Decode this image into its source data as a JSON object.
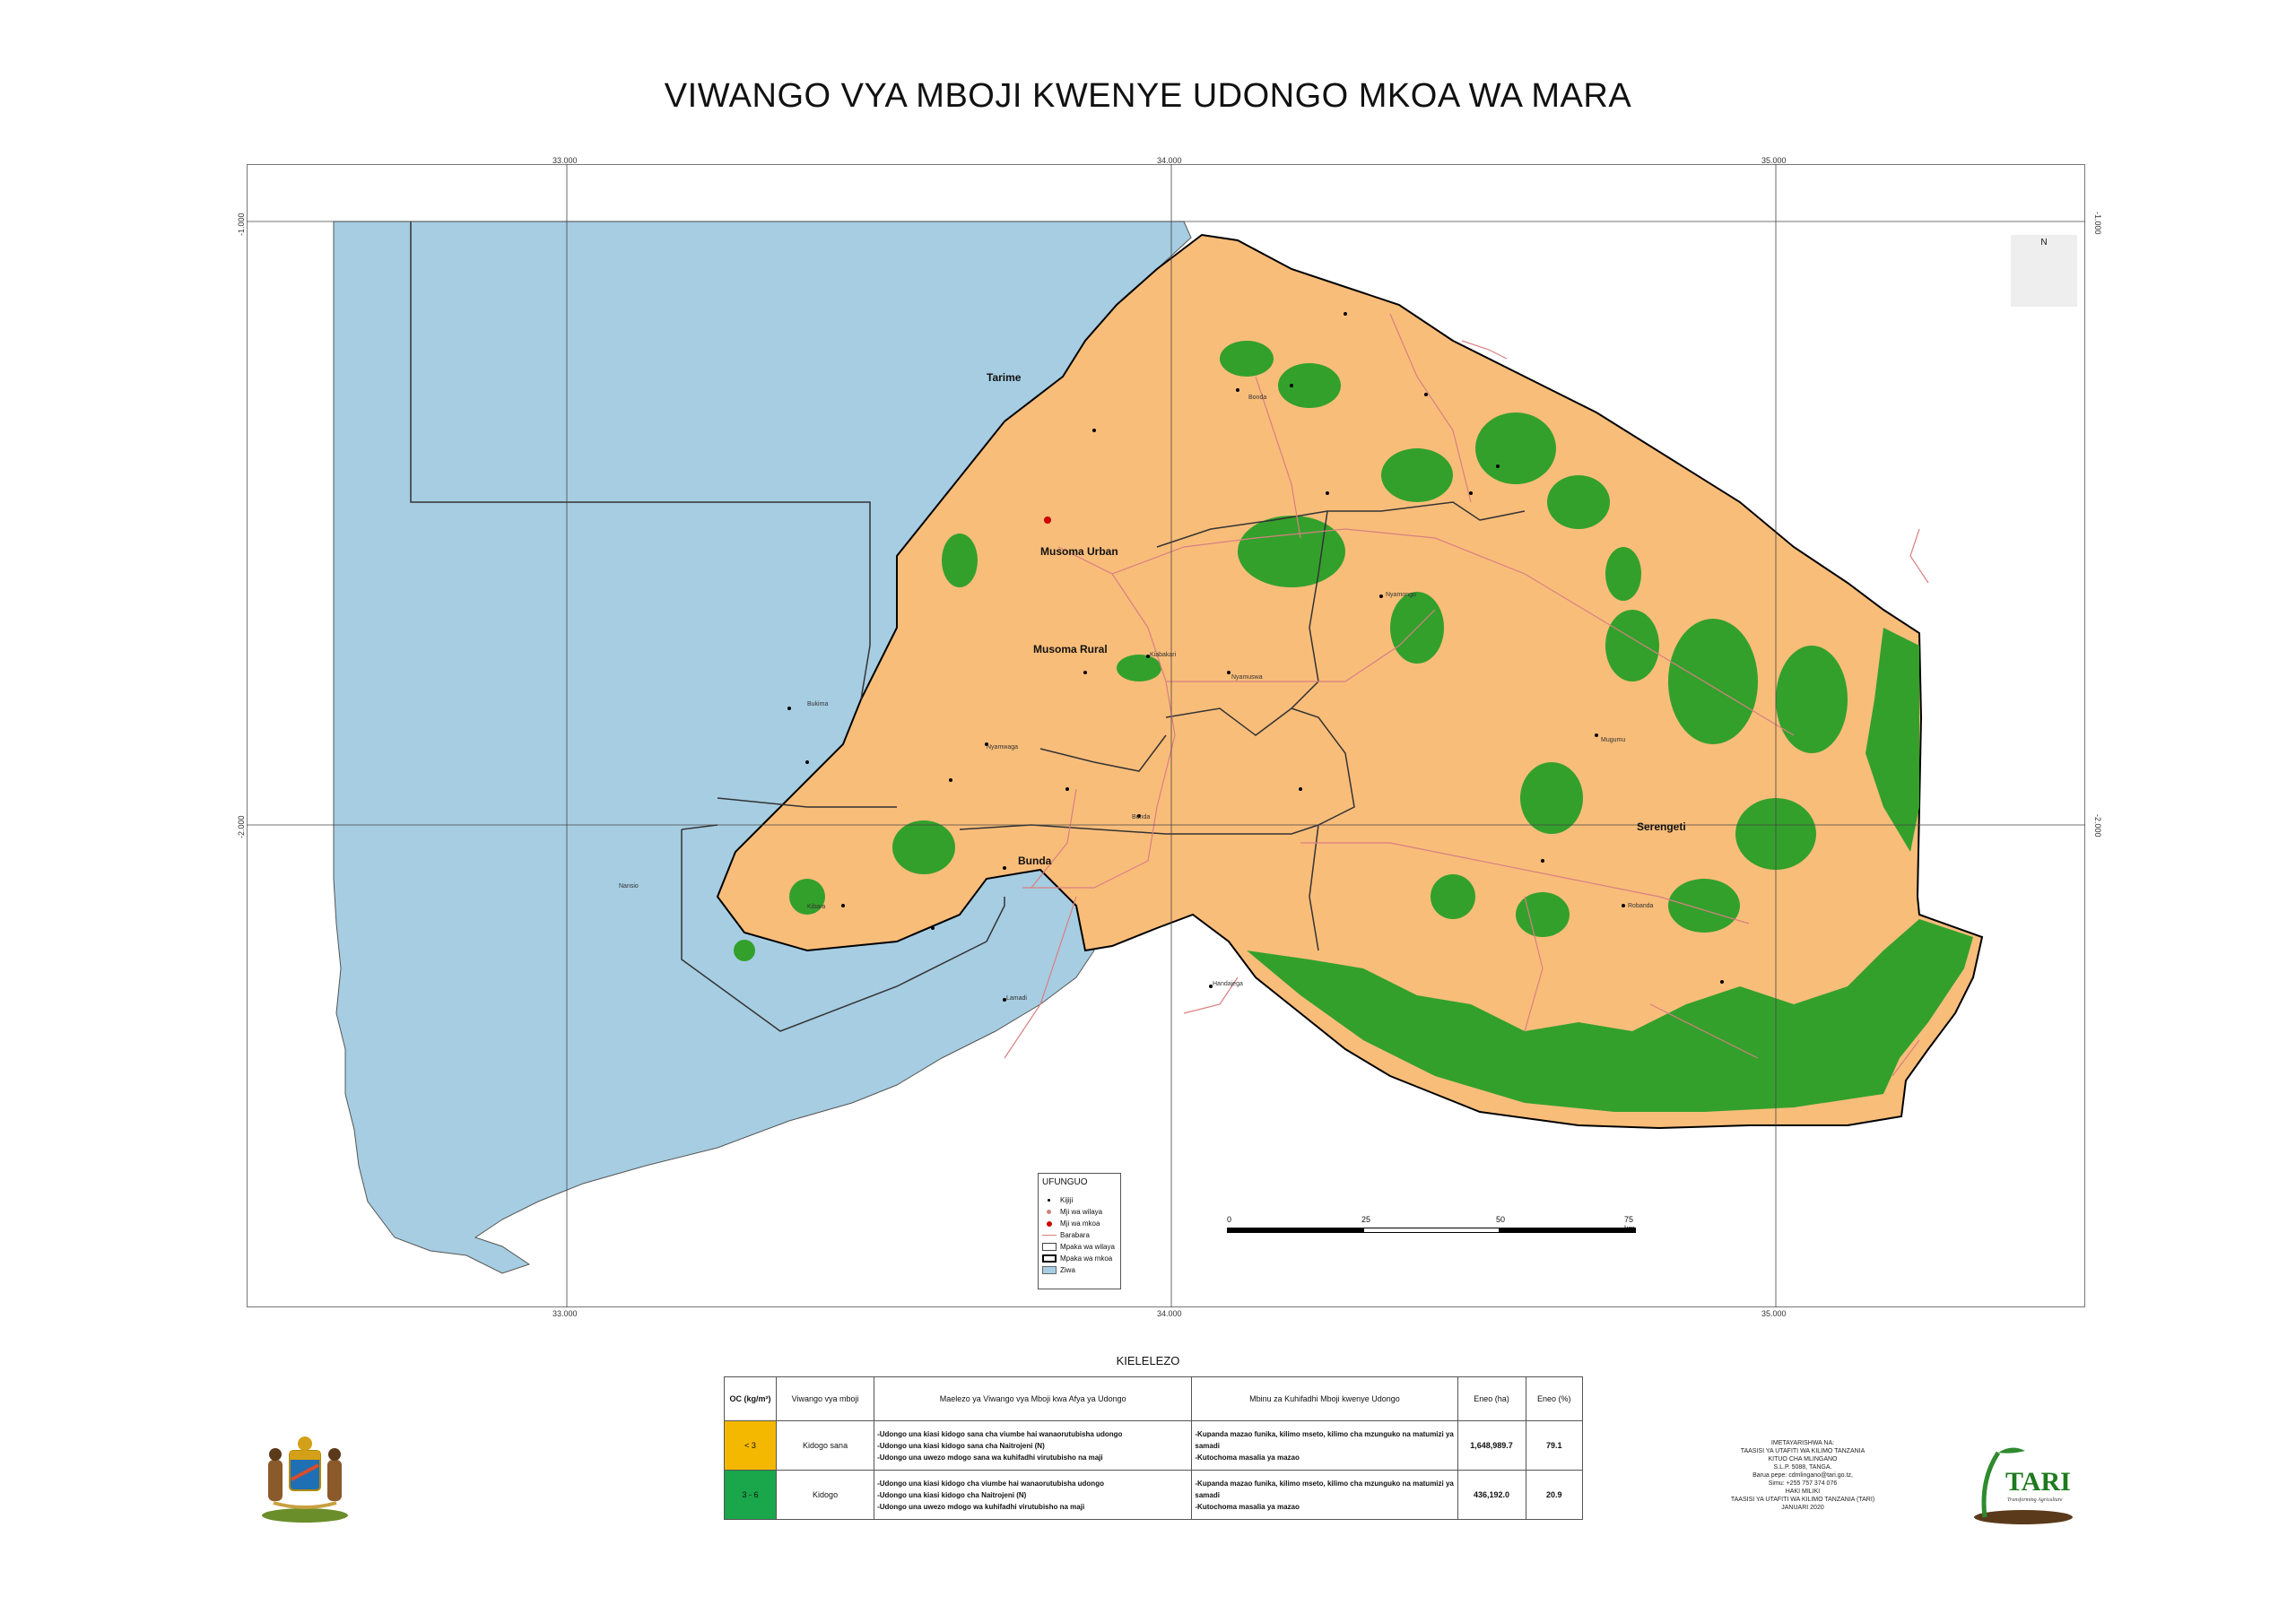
{
  "title": "VIWANGO VYA MBOJI KWENYE UDONGO MKOA WA MARA",
  "grid": {
    "lon_labels": [
      "33.000",
      "34.000",
      "35.000"
    ],
    "lat_labels": [
      "-1.000",
      "-2.000"
    ]
  },
  "places": {
    "tarime": "Tarime",
    "musoma_urban": "Musoma Urban",
    "musoma_rural": "Musoma Rural",
    "bunda": "Bunda",
    "serengeti": "Serengeti"
  },
  "villages": [
    "Bonda",
    "Nyamongo",
    "Kiabakari",
    "Nyamuswa",
    "Bunda",
    "Mugumu",
    "Robanda",
    "Kibara",
    "Nansio",
    "Nyamwaga",
    "Handajega",
    "Lamadi",
    "Bukima"
  ],
  "north_arrow": {
    "label": "N"
  },
  "legend": {
    "title": "UFUNGUO",
    "items": [
      {
        "label": "Kijiji",
        "symbol": "dot",
        "color": "#000000"
      },
      {
        "label": "Mji wa wilaya",
        "symbol": "dot",
        "color": "#d08080"
      },
      {
        "label": "Mji wa mkoa",
        "symbol": "dot",
        "color": "#cc0000"
      },
      {
        "label": "Barabara",
        "symbol": "line",
        "color": "#d88080"
      },
      {
        "label": "Mpaka wa wilaya",
        "symbol": "box-thin",
        "color": "#444444"
      },
      {
        "label": "Mpaka wa mkoa",
        "symbol": "box-thick",
        "color": "#000000"
      },
      {
        "label": "Ziwa",
        "symbol": "fill",
        "color": "#a6cde2"
      }
    ]
  },
  "scale_bar": {
    "labels": [
      "0",
      "25",
      "50",
      "75 km"
    ]
  },
  "table": {
    "caption": "KIELELEZO",
    "headers": [
      "OC (kg/m²)",
      "Viwango vya mboji",
      "Maelezo ya Viwango vya Mboji kwa Afya ya Udongo",
      "Mbinu za Kuhifadhi Mboji kwenye Udongo",
      "Eneo (ha)",
      "Eneo (%)"
    ],
    "rows": [
      {
        "oc": "< 3",
        "color": "#f5b800",
        "level": "Kidogo sana",
        "desc": [
          "-Udongo una kiasi kidogo sana cha viumbe hai wanaorutubisha udongo",
          "-Udongo una kiasi kidogo sana cha Naitrojeni (N)",
          "-Udongo una uwezo mdogo sana wa kuhifadhi virutubisho na maji"
        ],
        "methods": [
          "-Kupanda mazao funika, kilimo mseto, kilimo cha mzunguko na matumizi ya samadi",
          "-Kutochoma masalia ya mazao"
        ],
        "area_ha": "1,648,989.7",
        "area_pct": "79.1"
      },
      {
        "oc": "3 - 6",
        "color": "#1aa64a",
        "level": "Kidogo",
        "desc": [
          "-Udongo una kiasi kidogo cha viumbe hai wanaorutubisha udongo",
          "-Udongo una kiasi kidogo cha Naitrojeni (N)",
          "-Udongo una uwezo mdogo wa kuhifadhi virutubisho na maji"
        ],
        "methods": [
          "-Kupanda mazao funika, kilimo mseto, kilimo cha mzunguko na matumizi ya samadi",
          "-Kutochoma masalia ya mazao"
        ],
        "area_ha": "436,192.0",
        "area_pct": "20.9"
      }
    ]
  },
  "colors": {
    "lake": "#a6cde2",
    "low": "#f9bd7a",
    "medium": "#33a02c",
    "road": "#d88080"
  },
  "credit": [
    "IMETAYARISHWA NA:",
    "TAASISI YA UTAFITI WA KILIMO TANZANIA",
    "KITUO CHA MLINGANO",
    "S.L.P. 5088, TANGA.",
    "Barua pepe: cdmlingano@tari.go.tz,",
    "Simu: +255 757 374 076",
    "HAKI MILIKI",
    "TAASISI YA UTAFITI WA KILIMO TANZANIA (TARI)",
    "JANUARI 2020"
  ],
  "logo": {
    "name": "TARI",
    "tagline": "Transforming Agriculture"
  }
}
